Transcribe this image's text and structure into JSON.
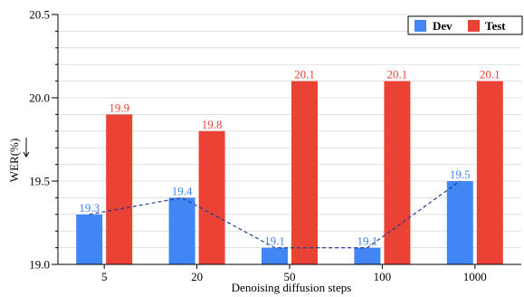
{
  "chart_data": {
    "type": "bar",
    "categories": [
      "5",
      "20",
      "50",
      "100",
      "1000"
    ],
    "series": [
      {
        "name": "Dev",
        "values": [
          19.3,
          19.4,
          19.1,
          19.1,
          19.5
        ],
        "color": "#4285f4",
        "label_color": "#4285f4"
      },
      {
        "name": "Test",
        "values": [
          19.9,
          19.8,
          20.1,
          20.1,
          20.1
        ],
        "color": "#ea4335",
        "label_color": "#ea4335"
      }
    ],
    "data_labels": {
      "Dev": [
        "19.3",
        "19.4",
        "19.1",
        "19.1",
        "19.5"
      ],
      "Test": [
        "19.9",
        "19.8",
        "20.1",
        "20.1",
        "20.1"
      ]
    },
    "dev_trend_line": {
      "style": "dashed",
      "color": "#1f3f8f"
    },
    "xlabel": "Denoising diffusion steps",
    "ylabel": "WER(%)",
    "ylabel_arrow": "down",
    "ylim": [
      19.0,
      20.5
    ],
    "yticks": [
      "19.0",
      "19.5",
      "20.0",
      "20.5"
    ],
    "grid": "horizontal",
    "legend_position": "top-right"
  }
}
